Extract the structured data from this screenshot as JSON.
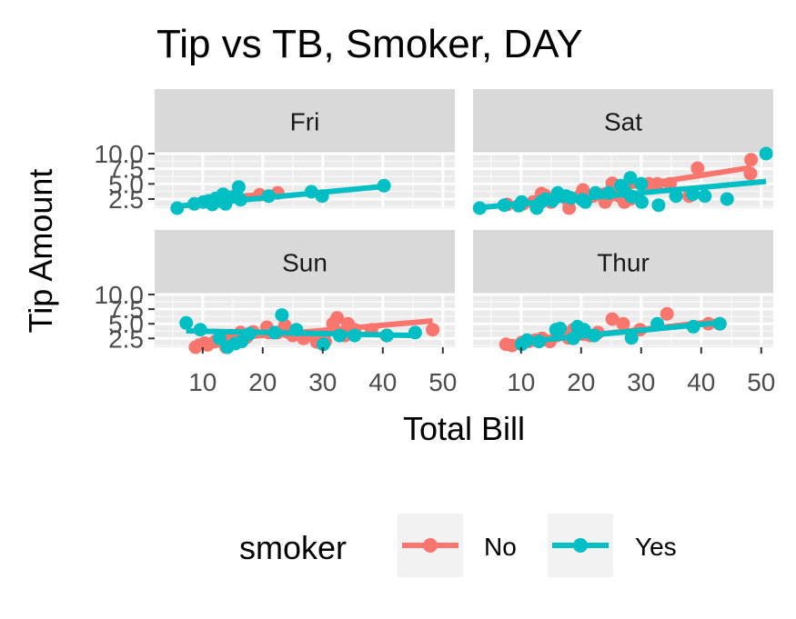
{
  "chart_data": {
    "type": "scatter",
    "title": "Tip vs TB, Smoker, DAY",
    "xlabel": "Total Bill",
    "ylabel": "Tip Amount",
    "xlim": [
      2,
      52
    ],
    "ylim": [
      1,
      10
    ],
    "x_ticks": [
      10,
      20,
      30,
      40,
      50
    ],
    "y_ticks": [
      2.5,
      5.0,
      7.5,
      10.0
    ],
    "x_tick_labels": [
      "10",
      "20",
      "30",
      "40",
      "50"
    ],
    "y_tick_labels": [
      "2.5",
      "5.0",
      "7.5",
      "10.0"
    ],
    "grid": true,
    "legend": {
      "title": "smoker",
      "position": "bottom",
      "entries": [
        {
          "label": "No",
          "color": "#F8766D"
        },
        {
          "label": "Yes",
          "color": "#00BFC4"
        }
      ]
    },
    "facets": [
      {
        "label": "Fri",
        "series": [
          {
            "name": "No",
            "color": "#F8766D",
            "points": [
              [
                22.5,
                3.5
              ],
              [
                12.5,
                2.5
              ],
              [
                15.4,
                3.0
              ],
              [
                19.5,
                3.2
              ]
            ],
            "trend": [
              [
                12,
                2.6
              ],
              [
                23,
                3.5
              ]
            ]
          },
          {
            "name": "Yes",
            "color": "#00BFC4",
            "points": [
              [
                5.75,
                1.0
              ],
              [
                8.6,
                1.7
              ],
              [
                10.1,
                2.0
              ],
              [
                11.0,
                2.2
              ],
              [
                11.6,
                1.6
              ],
              [
                12.2,
                2.6
              ],
              [
                12.7,
                2.2
              ],
              [
                13.4,
                3.3
              ],
              [
                13.8,
                1.7
              ],
              [
                14.8,
                2.8
              ],
              [
                15.7,
                3.0
              ],
              [
                16.0,
                4.5
              ],
              [
                16.3,
                2.4
              ],
              [
                21.0,
                3.0
              ],
              [
                28.1,
                3.7
              ],
              [
                29.9,
                3.0
              ],
              [
                40.2,
                4.7
              ]
            ],
            "trend": [
              [
                5.75,
                1.3
              ],
              [
                40.2,
                4.6
              ]
            ]
          }
        ]
      },
      {
        "label": "Sat",
        "series": [
          {
            "name": "No",
            "color": "#F8766D",
            "points": [
              [
                7.7,
                1.6
              ],
              [
                10.3,
                1.7
              ],
              [
                12.0,
                2.0
              ],
              [
                13.0,
                2.0
              ],
              [
                13.4,
                3.4
              ],
              [
                14.0,
                3.1
              ],
              [
                15.0,
                2.0
              ],
              [
                16.6,
                3.0
              ],
              [
                17.8,
                2.3
              ],
              [
                18.0,
                1.0
              ],
              [
                19.8,
                3.0
              ],
              [
                20.3,
                4.0
              ],
              [
                20.7,
                2.9
              ],
              [
                22.0,
                3.0
              ],
              [
                23.8,
                3.3
              ],
              [
                24.0,
                2.0
              ],
              [
                24.7,
                3.0
              ],
              [
                26.4,
                3.0
              ],
              [
                27.2,
                2.0
              ],
              [
                28.2,
                2.5
              ],
              [
                31.3,
                5.0
              ],
              [
                32.7,
                5.0
              ],
              [
                34.8,
                5.0
              ],
              [
                38.0,
                3.0
              ],
              [
                39.4,
                7.6
              ],
              [
                44.3,
                2.5
              ],
              [
                48.3,
                9.0
              ],
              [
                48.2,
                6.7
              ],
              [
                25.2,
                5.1
              ]
            ],
            "trend": [
              [
                7.7,
                1.4
              ],
              [
                48.3,
                7.7
              ]
            ]
          },
          {
            "name": "Yes",
            "color": "#00BFC4",
            "points": [
              [
                3.1,
                1.0
              ],
              [
                7.2,
                1.5
              ],
              [
                9.6,
                1.4
              ],
              [
                10.1,
                2.0
              ],
              [
                12.6,
                1.0
              ],
              [
                13.3,
                2.0
              ],
              [
                14.1,
                2.5
              ],
              [
                15.2,
                2.2
              ],
              [
                16.1,
                3.5
              ],
              [
                17.5,
                3.0
              ],
              [
                18.3,
                2.7
              ],
              [
                20.2,
                2.4
              ],
              [
                20.7,
                2.0
              ],
              [
                22.4,
                3.5
              ],
              [
                24.6,
                3.5
              ],
              [
                26.6,
                4.7
              ],
              [
                27.3,
                3.8
              ],
              [
                28.2,
                6.0
              ],
              [
                28.4,
                2.9
              ],
              [
                30.0,
                5.0
              ],
              [
                30.1,
                2.0
              ],
              [
                32.9,
                1.5
              ],
              [
                35.8,
                3.0
              ],
              [
                38.6,
                3.3
              ],
              [
                40.6,
                3.0
              ],
              [
                44.3,
                2.5
              ],
              [
                50.8,
                10.0
              ]
            ],
            "trend": [
              [
                3.1,
                1.1
              ],
              [
                50.8,
                5.4
              ]
            ]
          }
        ]
      },
      {
        "label": "Sun",
        "series": [
          {
            "name": "No",
            "color": "#F8766D",
            "points": [
              [
                8.8,
                1.0
              ],
              [
                10.3,
                1.7
              ],
              [
                10.8,
                1.4
              ],
              [
                12.1,
                2.0
              ],
              [
                13.9,
                1.0
              ],
              [
                14.8,
                3.0
              ],
              [
                15.4,
                2.0
              ],
              [
                16.3,
                3.5
              ],
              [
                17.3,
                2.7
              ],
              [
                18.4,
                3.6
              ],
              [
                20.7,
                4.4
              ],
              [
                21.0,
                3.5
              ],
              [
                21.6,
                3.5
              ],
              [
                22.5,
                3.5
              ],
              [
                23.7,
                4.7
              ],
              [
                24.1,
                3.6
              ],
              [
                25.0,
                3.0
              ],
              [
                26.8,
                2.5
              ],
              [
                29.0,
                1.9
              ],
              [
                30.4,
                2.0
              ],
              [
                31.7,
                5.0
              ],
              [
                32.4,
                6.0
              ],
              [
                34.2,
                5.0
              ],
              [
                35.3,
                4.0
              ],
              [
                38.1,
                4.0
              ],
              [
                40.6,
                3.0
              ],
              [
                48.3,
                4.0
              ],
              [
                33.7,
                3.0
              ],
              [
                28.3,
                3.0
              ]
            ],
            "trend": [
              [
                8.8,
                2.0
              ],
              [
                48.3,
                5.5
              ]
            ]
          },
          {
            "name": "Yes",
            "color": "#00BFC4",
            "points": [
              [
                7.25,
                5.15
              ],
              [
                9.6,
                4.0
              ],
              [
                12.8,
                2.5
              ],
              [
                14.1,
                1.0
              ],
              [
                15.4,
                1.6
              ],
              [
                16.5,
                2.0
              ],
              [
                17.8,
                3.3
              ],
              [
                22.0,
                3.5
              ],
              [
                23.2,
                6.5
              ],
              [
                25.6,
                4.0
              ],
              [
                30.1,
                1.5
              ],
              [
                32.8,
                3.0
              ],
              [
                35.3,
                3.0
              ],
              [
                40.7,
                3.0
              ],
              [
                45.4,
                3.5
              ]
            ],
            "trend": [
              [
                7.25,
                3.8
              ],
              [
                45.4,
                3.0
              ]
            ]
          }
        ]
      },
      {
        "label": "Thur",
        "series": [
          {
            "name": "No",
            "color": "#F8766D",
            "points": [
              [
                7.5,
                1.5
              ],
              [
                8.5,
                1.3
              ],
              [
                10.1,
                1.8
              ],
              [
                11.2,
                2.0
              ],
              [
                12.4,
                2.2
              ],
              [
                13.5,
                2.5
              ],
              [
                14.8,
                2.0
              ],
              [
                16.0,
                3.0
              ],
              [
                17.9,
                2.6
              ],
              [
                19.0,
                3.0
              ],
              [
                20.3,
                3.2
              ],
              [
                21.5,
                3.0
              ],
              [
                25.2,
                5.8
              ],
              [
                27.0,
                5.0
              ],
              [
                29.8,
                4.0
              ],
              [
                34.3,
                6.7
              ],
              [
                41.2,
                5.0
              ],
              [
                43.1,
                5.0
              ],
              [
                22.8,
                3.5
              ],
              [
                18.7,
                4.0
              ]
            ],
            "trend": [
              [
                7.5,
                1.5
              ],
              [
                43.1,
                5.5
              ]
            ]
          },
          {
            "name": "Yes",
            "color": "#00BFC4",
            "points": [
              [
                10.1,
                1.5
              ],
              [
                11.0,
                2.2
              ],
              [
                13.0,
                2.0
              ],
              [
                15.8,
                4.0
              ],
              [
                16.5,
                4.2
              ],
              [
                18.7,
                2.5
              ],
              [
                19.4,
                4.5
              ],
              [
                20.5,
                4.0
              ],
              [
                22.2,
                3.0
              ],
              [
                28.4,
                2.6
              ],
              [
                32.7,
                5.0
              ],
              [
                38.7,
                4.5
              ],
              [
                43.1,
                5.0
              ]
            ],
            "trend": [
              [
                10.1,
                1.9
              ],
              [
                43.1,
                5.2
              ]
            ]
          }
        ]
      }
    ]
  }
}
